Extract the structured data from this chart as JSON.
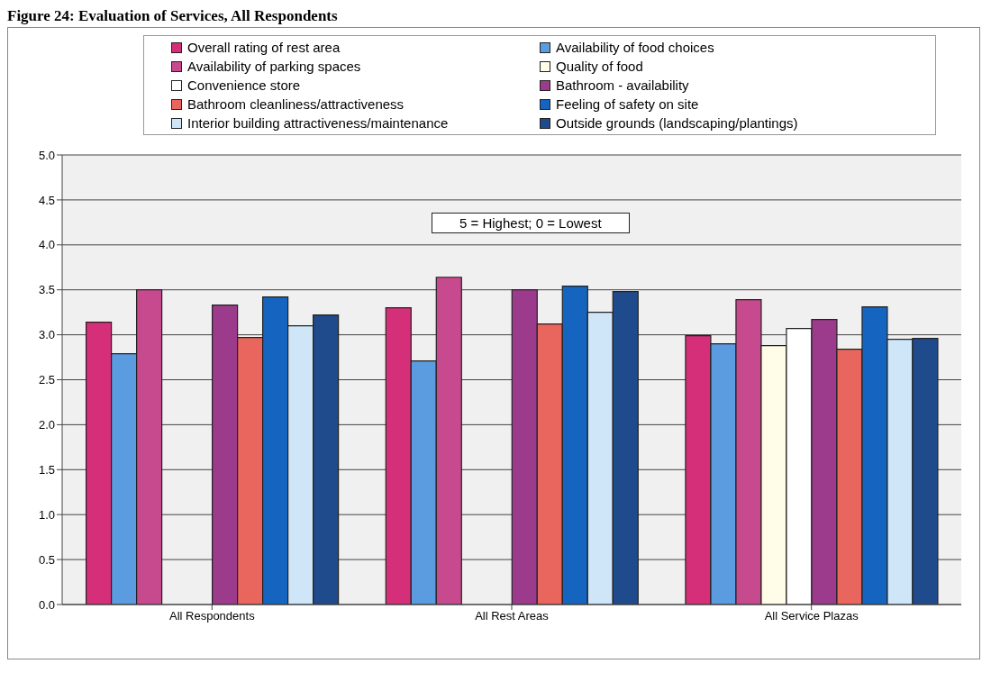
{
  "chart_data": {
    "type": "bar",
    "title": "Figure 24: Evaluation of Services, All Respondents",
    "annotations": [
      "5 = Highest; 0 = Lowest"
    ],
    "categories": [
      "All Respondents",
      "All Rest Areas",
      "All Service Plazas"
    ],
    "series": [
      {
        "name": "Overall rating of rest area",
        "color": "#d62f7a",
        "values": [
          3.14,
          3.3,
          2.99
        ]
      },
      {
        "name": "Availability of food choices",
        "color": "#5b9be0",
        "values": [
          2.79,
          2.71,
          2.9
        ]
      },
      {
        "name": "Availability of parking spaces",
        "color": "#c84a8e",
        "values": [
          3.5,
          3.64,
          3.39
        ]
      },
      {
        "name": "Quality of food",
        "color": "#fffde8",
        "values": [
          null,
          null,
          2.88
        ]
      },
      {
        "name": "Convenience store",
        "color": "#ffffff",
        "values": [
          null,
          null,
          3.07
        ]
      },
      {
        "name": "Bathroom - availability",
        "color": "#9c3a8c",
        "values": [
          3.33,
          3.5,
          3.17
        ]
      },
      {
        "name": "Bathroom  cleanliness/attractiveness",
        "color": "#e8665e",
        "values": [
          2.97,
          3.12,
          2.84
        ]
      },
      {
        "name": "Feeling of safety on site",
        "color": "#1565c0",
        "values": [
          3.42,
          3.54,
          3.31
        ]
      },
      {
        "name": "Interior building attractiveness/maintenance",
        "color": "#cfe6f8",
        "values": [
          3.1,
          3.25,
          2.95
        ]
      },
      {
        "name": "Outside grounds (landscaping/plantings)",
        "color": "#1f4a8c",
        "values": [
          3.22,
          3.48,
          2.96
        ]
      }
    ],
    "ylim": [
      0,
      5
    ],
    "yticks": [
      {
        "value": 0,
        "label": "0.0"
      },
      {
        "value": 0.5,
        "label": "0.5"
      },
      {
        "value": 1,
        "label": "1.0"
      },
      {
        "value": 1.5,
        "label": "1.5"
      },
      {
        "value": 2,
        "label": "2.0"
      },
      {
        "value": 2.5,
        "label": "2.5"
      },
      {
        "value": 3,
        "label": "3.0"
      },
      {
        "value": 3.5,
        "label": "3.5"
      },
      {
        "value": 4,
        "label": "4.0"
      },
      {
        "value": 4.5,
        "label": "4.5"
      },
      {
        "value": 5,
        "label": "5.0"
      }
    ],
    "grid": "y",
    "legend": "top"
  }
}
